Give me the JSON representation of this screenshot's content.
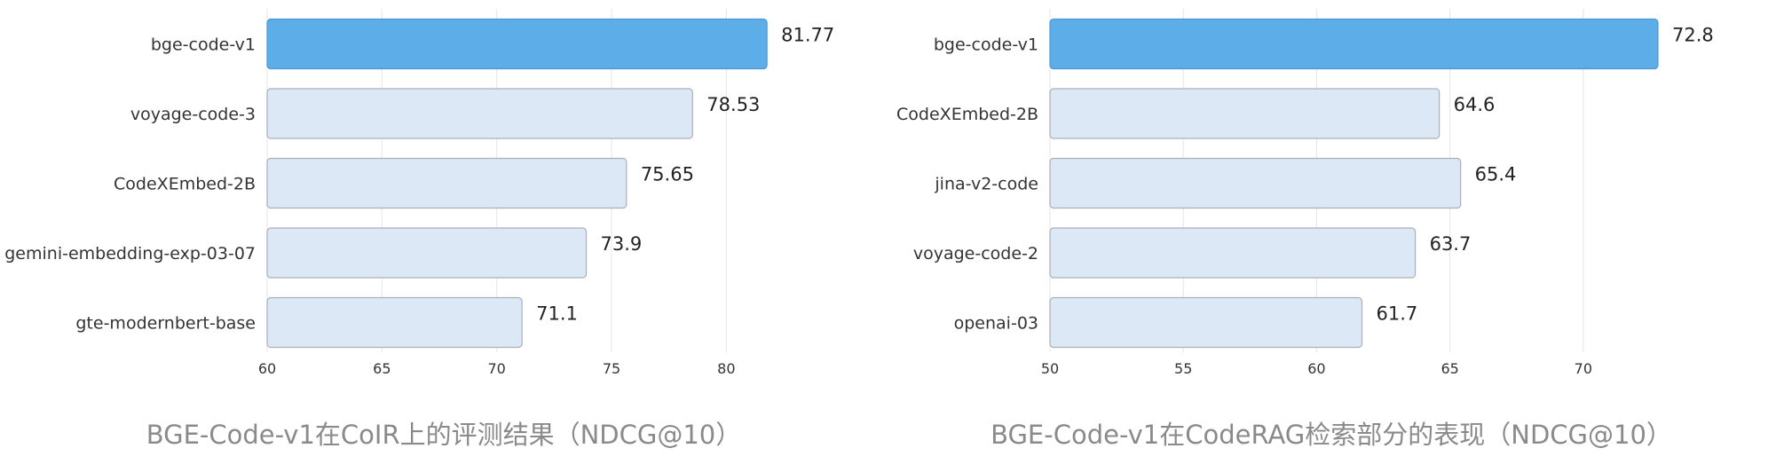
{
  "colors": {
    "highlight_fill": "#5dade8",
    "highlight_stroke": "#4a98d3",
    "bar_fill": "#dce8f5",
    "bar_stroke": "#a9b0ba",
    "grid": "#e8e8e8",
    "caption": "#8a8a8a"
  },
  "chart_data": [
    {
      "type": "bar",
      "orientation": "horizontal",
      "categories": [
        "bge-code-v1",
        "voyage-code-3",
        "CodeXEmbed-2B",
        "gemini-embedding-exp-03-07",
        "gte-modernbert-base"
      ],
      "values": [
        81.77,
        78.53,
        75.65,
        73.9,
        71.1
      ],
      "value_labels": [
        "81.77",
        "78.53",
        "75.65",
        "73.9",
        "71.1"
      ],
      "highlight_index": 0,
      "xlim": [
        60,
        82.5
      ],
      "xticks": [
        60,
        65,
        70,
        75,
        80
      ],
      "xtick_labels": [
        "60",
        "65",
        "70",
        "75",
        "80"
      ],
      "grid": true,
      "title": "BGE-Code-v1在CoIR上的评测结果（NDCG@10）",
      "xlabel": "",
      "ylabel": ""
    },
    {
      "type": "bar",
      "orientation": "horizontal",
      "categories": [
        "bge-code-v1",
        "CodeXEmbed-2B",
        "jina-v2-code",
        "voyage-code-2",
        "openai-03"
      ],
      "values": [
        72.8,
        64.6,
        65.4,
        63.7,
        61.7
      ],
      "value_labels": [
        "72.8",
        "64.6",
        "65.4",
        "63.7",
        "61.7"
      ],
      "highlight_index": 0,
      "xlim": [
        50,
        73.3
      ],
      "xticks": [
        50,
        55,
        60,
        65,
        70
      ],
      "xtick_labels": [
        "50",
        "55",
        "60",
        "65",
        "70"
      ],
      "grid": true,
      "title": "BGE-Code-v1在CodeRAG检索部分的表现（NDCG@10）",
      "xlabel": "",
      "ylabel": ""
    }
  ]
}
